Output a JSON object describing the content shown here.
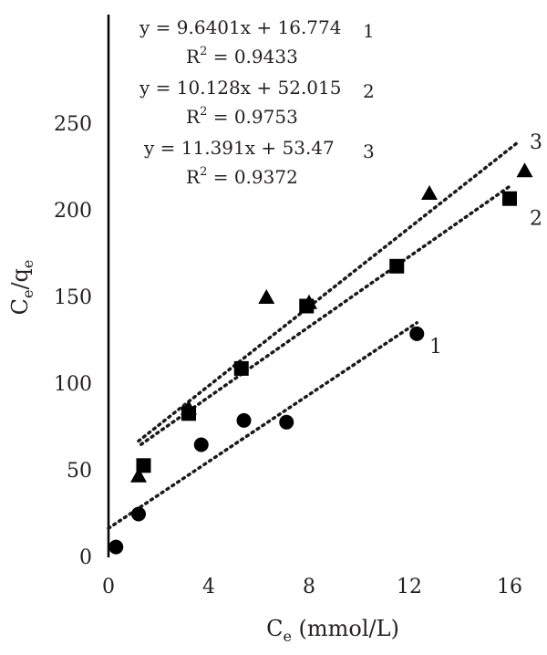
{
  "chart_data": {
    "type": "scatter",
    "title": "",
    "xlabel": {
      "base": "C",
      "sub": "e",
      "rest": " (mmol/L)"
    },
    "ylabel": {
      "base1": "C",
      "sub1": "e",
      "sep": "/q",
      "sub2": "e"
    },
    "xlim": [
      0,
      17.5
    ],
    "ylim": [
      0,
      250
    ],
    "xticks": [
      0,
      4,
      8,
      12,
      16
    ],
    "yticks": [
      0,
      50,
      100,
      150,
      200,
      250
    ],
    "grid": false,
    "series": [
      {
        "name": "1",
        "marker": "circle",
        "points": [
          [
            0.3,
            6
          ],
          [
            1.2,
            25
          ],
          [
            3.7,
            65
          ],
          [
            5.4,
            79
          ],
          [
            7.1,
            78
          ],
          [
            12.3,
            129
          ]
        ],
        "trend": {
          "slope": 9.6401,
          "intercept": 16.774,
          "x_range": [
            0,
            12.3
          ]
        },
        "label_at": [
          12.8,
          122
        ]
      },
      {
        "name": "2",
        "marker": "square",
        "points": [
          [
            1.4,
            53
          ],
          [
            3.2,
            83
          ],
          [
            5.3,
            109
          ],
          [
            7.9,
            145
          ],
          [
            11.5,
            168
          ],
          [
            16.0,
            207
          ]
        ],
        "trend": {
          "slope": 10.128,
          "intercept": 52.015,
          "x_range": [
            1.3,
            16.1
          ]
        },
        "label_at": [
          16.8,
          196
        ]
      },
      {
        "name": "3",
        "marker": "triangle",
        "points": [
          [
            1.2,
            47
          ],
          [
            3.2,
            86
          ],
          [
            6.3,
            150
          ],
          [
            8.0,
            147
          ],
          [
            12.8,
            210
          ],
          [
            16.6,
            223
          ]
        ],
        "trend": {
          "slope": 11.391,
          "intercept": 53.47,
          "x_range": [
            1.2,
            16.4
          ]
        },
        "label_at": [
          16.8,
          240
        ]
      }
    ],
    "equations": [
      {
        "eq": "y = 9.6401x + 16.774",
        "r2_base": "R",
        "r2_sup": "2",
        "r2_rest": " = 0.9433",
        "id": "1"
      },
      {
        "eq": "y = 10.128x + 52.015",
        "r2_base": "R",
        "r2_sup": "2",
        "r2_rest": " = 0.9753",
        "id": "2"
      },
      {
        "eq": "y = 11.391x + 53.47",
        "r2_base": "R",
        "r2_sup": "2",
        "r2_rest": " = 0.9372",
        "id": "3"
      }
    ]
  }
}
